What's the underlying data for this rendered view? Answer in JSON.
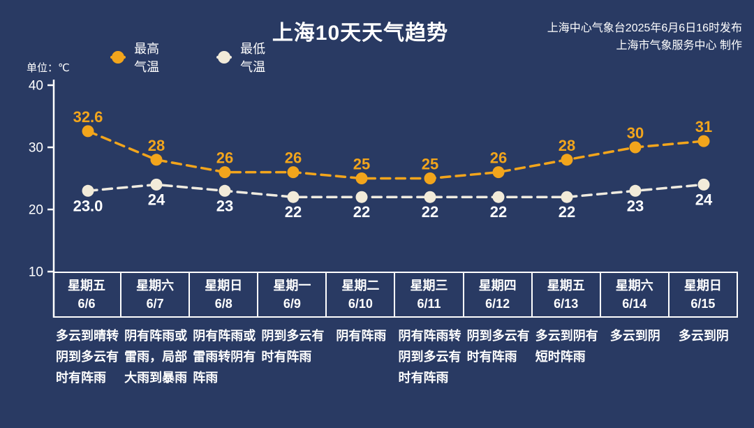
{
  "header": {
    "title": "上海10天天气趋势",
    "source_line1": "上海中心气象台2025年6月6日16时发布",
    "source_line2": "上海市气象服务中心 制作"
  },
  "legend": {
    "high_label": "最高气温",
    "low_label": "最低气温"
  },
  "unit_label": "单位：℃",
  "colors": {
    "background": "#293A63",
    "high_line": "#F2A51C",
    "high_label": "#F2A51C",
    "low_line": "#EFEBE0",
    "low_marker": "#F2EBD9",
    "low_label": "#FFFFFF",
    "axis": "#FFFFFF",
    "text": "#FFFFFF"
  },
  "chart_data": {
    "type": "line",
    "title": "上海10天天气趋势",
    "ylabel": "℃",
    "ylim": [
      10,
      40
    ],
    "yticks": [
      10,
      20,
      30,
      40
    ],
    "grid": false,
    "legend_position": "top-left",
    "categories": [
      {
        "weekday": "星期五",
        "date": "6/6"
      },
      {
        "weekday": "星期六",
        "date": "6/7"
      },
      {
        "weekday": "星期日",
        "date": "6/8"
      },
      {
        "weekday": "星期一",
        "date": "6/9"
      },
      {
        "weekday": "星期二",
        "date": "6/10"
      },
      {
        "weekday": "星期三",
        "date": "6/11"
      },
      {
        "weekday": "星期四",
        "date": "6/12"
      },
      {
        "weekday": "星期五",
        "date": "6/13"
      },
      {
        "weekday": "星期六",
        "date": "6/14"
      },
      {
        "weekday": "星期日",
        "date": "6/15"
      }
    ],
    "series": [
      {
        "name": "最高气温",
        "values": [
          32.6,
          28,
          26,
          26,
          25,
          25,
          26,
          28,
          30,
          31
        ],
        "labels": [
          "32.6",
          "28",
          "26",
          "26",
          "25",
          "25",
          "26",
          "28",
          "30",
          "31"
        ],
        "line_color": "#F2A51C",
        "marker_color": "#F2A51C",
        "label_color": "#F2A51C"
      },
      {
        "name": "最低气温",
        "values": [
          23.0,
          24,
          23,
          22,
          22,
          22,
          22,
          22,
          23,
          24
        ],
        "labels": [
          "23.0",
          "24",
          "23",
          "22",
          "22",
          "22",
          "22",
          "22",
          "23",
          "24"
        ],
        "line_color": "#EFEBE0",
        "marker_color": "#F2EBD9",
        "label_color": "#FFFFFF"
      }
    ],
    "weather": [
      [
        "多云到晴转",
        "阴到多云有",
        "时有阵雨"
      ],
      [
        "阴有阵雨或",
        "雷雨，局部",
        "大雨到暴雨"
      ],
      [
        "阴有阵雨或",
        "雷雨转阴有",
        "阵雨"
      ],
      [
        "阴到多云有",
        "时有阵雨"
      ],
      [
        "阴有阵雨"
      ],
      [
        "阴有阵雨转",
        "阴到多云有",
        "时有阵雨"
      ],
      [
        "阴到多云有",
        "时有阵雨"
      ],
      [
        "多云到阴有",
        "短时阵雨"
      ],
      [
        "多云到阴"
      ],
      [
        "多云到阴"
      ]
    ]
  }
}
